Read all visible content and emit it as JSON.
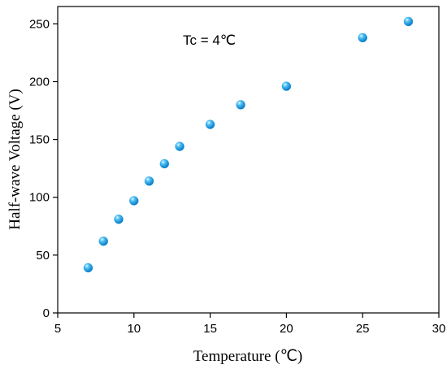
{
  "chart_data": {
    "type": "scatter",
    "title": "",
    "xlabel": "Temperature (℃)",
    "ylabel": "Half-wave Voltage (V)",
    "annotation": "Tc = 4℃",
    "xlim": [
      5,
      30
    ],
    "ylim": [
      0,
      265
    ],
    "xticks": [
      5,
      10,
      15,
      20,
      25,
      30
    ],
    "yticks": [
      0,
      50,
      100,
      150,
      200,
      250
    ],
    "grid": false,
    "marker_color": "#1a9fe3",
    "series": [
      {
        "x": [
          7,
          8,
          9,
          10,
          11,
          12,
          13,
          15,
          17,
          20,
          25,
          28
        ],
        "y": [
          39,
          62,
          81,
          97,
          114,
          129,
          144,
          163,
          180,
          196,
          238,
          252
        ]
      }
    ]
  }
}
